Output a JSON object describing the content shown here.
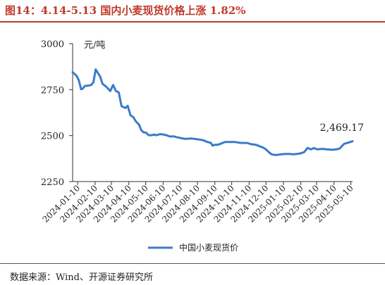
{
  "title": "图14：4.14-5.13 国内小麦现货价格上涨 1.82%",
  "source": "数据来源：Wind、开源证券研究所",
  "chart_data": {
    "type": "line",
    "ylabel": "元/吨",
    "ylim": [
      2250,
      3000
    ],
    "yticks": [
      "2250",
      "2500",
      "2750",
      "3000"
    ],
    "yticks_values": [
      2250,
      2500,
      2750,
      3000
    ],
    "xticks": [
      "2024-01-10",
      "2024-02-10",
      "2024-03-10",
      "2024-04-10",
      "2024-05-10",
      "2024-06-10",
      "2024-07-10",
      "2024-08-10",
      "2024-09-10",
      "2024-10-10",
      "2024-11-10",
      "2024-12-10",
      "2025-01-10",
      "2025-02-10",
      "2025-03-10",
      "2025-04-10",
      "2025-05-10"
    ],
    "x_start": "2024-01-01",
    "x_end": "2025-05-13",
    "legend": "top",
    "grid": false,
    "color": "#3a7cc8",
    "series": [
      {
        "name": "中国小麦现货价",
        "x": [
          "2024-01-01",
          "2024-01-08",
          "2024-01-12",
          "2024-01-16",
          "2024-01-19",
          "2024-01-23",
          "2024-01-28",
          "2024-02-03",
          "2024-02-07",
          "2024-02-11",
          "2024-02-16",
          "2024-02-19",
          "2024-02-23",
          "2024-03-01",
          "2024-03-08",
          "2024-03-13",
          "2024-03-18",
          "2024-03-23",
          "2024-03-28",
          "2024-04-04",
          "2024-04-08",
          "2024-04-13",
          "2024-04-18",
          "2024-04-23",
          "2024-04-28",
          "2024-05-02",
          "2024-05-06",
          "2024-05-11",
          "2024-05-15",
          "2024-05-20",
          "2024-05-25",
          "2024-05-29",
          "2024-06-05",
          "2024-06-10",
          "2024-06-16",
          "2024-06-22",
          "2024-06-28",
          "2024-07-06",
          "2024-07-14",
          "2024-07-20",
          "2024-07-30",
          "2024-08-10",
          "2024-08-20",
          "2024-08-28",
          "2024-09-03",
          "2024-09-06",
          "2024-09-10",
          "2024-09-15",
          "2024-09-20",
          "2024-09-28",
          "2024-10-07",
          "2024-10-16",
          "2024-10-26",
          "2024-11-06",
          "2024-11-14",
          "2024-11-22",
          "2024-11-30",
          "2024-12-05",
          "2024-12-10",
          "2024-12-15",
          "2024-12-20",
          "2024-12-25",
          "2024-12-30",
          "2025-01-06",
          "2025-01-14",
          "2025-01-20",
          "2025-01-28",
          "2025-02-06",
          "2025-02-11",
          "2025-02-16",
          "2025-02-22",
          "2025-02-28",
          "2025-03-05",
          "2025-03-12",
          "2025-03-20",
          "2025-03-28",
          "2025-04-07",
          "2025-04-14",
          "2025-04-20",
          "2025-04-28",
          "2025-05-06",
          "2025-05-13"
        ],
        "values": [
          2845,
          2825,
          2800,
          2752,
          2755,
          2770,
          2771,
          2775,
          2790,
          2860,
          2835,
          2820,
          2782,
          2765,
          2742,
          2775,
          2742,
          2735,
          2660,
          2650,
          2662,
          2610,
          2600,
          2575,
          2560,
          2530,
          2518,
          2515,
          2502,
          2502,
          2505,
          2502,
          2508,
          2506,
          2502,
          2495,
          2496,
          2490,
          2485,
          2482,
          2484,
          2480,
          2475,
          2465,
          2460,
          2445,
          2450,
          2450,
          2455,
          2465,
          2465,
          2465,
          2460,
          2460,
          2453,
          2450,
          2440,
          2435,
          2425,
          2410,
          2398,
          2395,
          2395,
          2398,
          2400,
          2400,
          2398,
          2401,
          2405,
          2410,
          2433,
          2425,
          2432,
          2425,
          2428,
          2425,
          2423,
          2425,
          2430,
          2455,
          2462,
          2469.17
        ]
      }
    ],
    "annotation": {
      "text": "2,469.17",
      "x": "2025-05-13",
      "y": 2469.17
    }
  }
}
